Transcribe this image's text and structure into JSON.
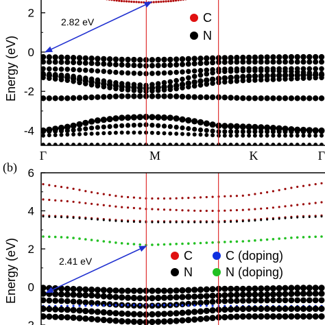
{
  "chart_data": [
    {
      "type": "scatter",
      "panel": "",
      "ylabel": "Energy (eV)",
      "ylim": [
        -4.75,
        3.0
      ],
      "yticks": [
        "-4",
        "-2",
        "0",
        "2"
      ],
      "ytick_values": [
        -4,
        -2,
        0,
        2
      ],
      "kpoints": [
        "Γ",
        "M",
        "K",
        "Γ"
      ],
      "kpoint_positions": [
        0,
        1,
        1.7,
        2.7
      ],
      "gap_annotation": {
        "text": "2.82 eV",
        "from": [
          0.02,
          0.0
        ],
        "to": [
          1.05,
          2.55
        ]
      },
      "legend": [
        {
          "label": "C",
          "color": "#e01010"
        },
        {
          "label": "N",
          "color": "#000000"
        }
      ],
      "bands": [
        {
          "color": "#b00a0a",
          "size": 1.6,
          "k": [
            0.45,
            0.6,
            0.75,
            0.9,
            1.0,
            1.1,
            1.25,
            1.4,
            1.55
          ],
          "e": [
            2.85,
            2.7,
            2.6,
            2.55,
            2.52,
            2.55,
            2.6,
            2.7,
            2.85
          ]
        },
        {
          "color": "#000000",
          "size": 4.2,
          "k": [
            0,
            0.25,
            0.5,
            0.75,
            1.0,
            1.25,
            1.5,
            1.7,
            1.95,
            2.2,
            2.45,
            2.7
          ],
          "e": [
            -0.25,
            -0.28,
            -0.33,
            -0.38,
            -0.4,
            -0.38,
            -0.33,
            -0.3,
            -0.28,
            -0.26,
            -0.25,
            -0.25
          ]
        },
        {
          "color": "#000000",
          "size": 4.0,
          "k": [
            0,
            0.25,
            0.5,
            0.75,
            1.0,
            1.25,
            1.5,
            1.7,
            1.95,
            2.2,
            2.45,
            2.7
          ],
          "e": [
            -0.5,
            -0.52,
            -0.58,
            -0.65,
            -0.7,
            -0.66,
            -0.58,
            -0.52,
            -0.5,
            -0.5,
            -0.5,
            -0.5
          ]
        },
        {
          "color": "#000000",
          "size": 3.8,
          "k": [
            0,
            0.25,
            0.5,
            0.75,
            1.0,
            1.25,
            1.5,
            1.7,
            1.95,
            2.2,
            2.45,
            2.7
          ],
          "e": [
            -0.85,
            -0.88,
            -0.95,
            -1.05,
            -1.1,
            -1.05,
            -0.95,
            -0.88,
            -0.85,
            -0.85,
            -0.85,
            -0.85
          ]
        },
        {
          "color": "#000000",
          "size": 3.8,
          "k": [
            0,
            0.25,
            0.5,
            0.75,
            1.0,
            1.25,
            1.5,
            1.7,
            1.95,
            2.2,
            2.45,
            2.7
          ],
          "e": [
            -1.1,
            -1.2,
            -1.4,
            -1.6,
            -1.7,
            -1.5,
            -1.2,
            -1.0,
            -0.95,
            -0.95,
            -1.0,
            -1.1
          ]
        },
        {
          "color": "#000000",
          "size": 4.2,
          "k": [
            0,
            0.25,
            0.5,
            0.75,
            1.0,
            1.25,
            1.5,
            1.7,
            1.95,
            2.2,
            2.45,
            2.7
          ],
          "e": [
            -1.15,
            -1.3,
            -1.55,
            -1.75,
            -1.85,
            -1.75,
            -1.5,
            -1.35,
            -1.25,
            -1.2,
            -1.18,
            -1.15
          ]
        },
        {
          "color": "#000000",
          "size": 3.8,
          "k": [
            0,
            0.25,
            0.5,
            0.75,
            1.0,
            1.25,
            1.5,
            1.7,
            1.95,
            2.2,
            2.45,
            2.7
          ],
          "e": [
            -1.3,
            -1.45,
            -1.7,
            -1.9,
            -2.0,
            -1.9,
            -1.7,
            -1.55,
            -1.45,
            -1.4,
            -1.35,
            -1.3
          ]
        },
        {
          "color": "#000000",
          "size": 4.2,
          "k": [
            0,
            0.25,
            0.5,
            0.75,
            1.0,
            1.25,
            1.5,
            1.7,
            1.95,
            2.2,
            2.45,
            2.7
          ],
          "e": [
            -2.35,
            -2.35,
            -2.3,
            -2.25,
            -2.25,
            -2.25,
            -2.3,
            -2.3,
            -2.35,
            -2.35,
            -2.35,
            -2.35
          ]
        },
        {
          "color": "#000000",
          "size": 4.6,
          "k": [
            0,
            0.25,
            0.5,
            0.75,
            1.0,
            1.25,
            1.5,
            1.7,
            1.95,
            2.2,
            2.45,
            2.7
          ],
          "e": [
            -4.0,
            -3.8,
            -3.5,
            -3.35,
            -3.3,
            -3.35,
            -3.55,
            -3.75,
            -3.8,
            -3.85,
            -3.95,
            -4.0
          ]
        },
        {
          "color": "#000000",
          "size": 3.6,
          "k": [
            0,
            0.25,
            0.5,
            0.75,
            1.0,
            1.25,
            1.5,
            1.7,
            1.95,
            2.2,
            2.45,
            2.7
          ],
          "e": [
            -4.05,
            -4.0,
            -3.85,
            -3.75,
            -3.7,
            -3.8,
            -3.95,
            -4.05,
            -4.05,
            -4.05,
            -4.05,
            -4.05
          ]
        },
        {
          "color": "#000000",
          "size": 3.0,
          "k": [
            0,
            0.25,
            0.5,
            0.75,
            1.0,
            1.25,
            1.5,
            1.7,
            1.95,
            2.2,
            2.45,
            2.7
          ],
          "e": [
            -4.25,
            -4.2,
            -4.15,
            -4.1,
            -4.1,
            -4.15,
            -4.2,
            -4.25,
            -4.25,
            -4.25,
            -4.25,
            -4.25
          ]
        },
        {
          "color": "#000000",
          "size": 3.0,
          "k": [
            0,
            0.25,
            0.5,
            0.75,
            1.0,
            1.25,
            1.5,
            1.7,
            1.95,
            2.2,
            2.45,
            2.7
          ],
          "e": [
            -4.72,
            -4.72,
            -4.72,
            -4.72,
            -4.72,
            -4.72,
            -4.72,
            -4.72,
            -4.72,
            -4.72,
            -4.72,
            -4.72
          ]
        }
      ]
    },
    {
      "type": "scatter",
      "panel": "(b)",
      "ylabel": "Energy (eV)",
      "ylim": [
        -2.0,
        6.0
      ],
      "yticks": [
        "-2",
        "0",
        "2",
        "4",
        "6"
      ],
      "ytick_values": [
        -2,
        0,
        2,
        4,
        6
      ],
      "kpoints": [
        "Γ",
        "M",
        "K",
        "Γ"
      ],
      "kpoint_positions": [
        0,
        1,
        1.7,
        2.7
      ],
      "gap_annotation": {
        "text": "2.41 eV",
        "from": [
          0.03,
          -0.3
        ],
        "to": [
          1.0,
          2.15
        ]
      },
      "legend": [
        {
          "label": "C",
          "color": "#e01010"
        },
        {
          "label": "N",
          "color": "#000000"
        },
        {
          "label": "C (doping)",
          "color": "#1030e0"
        },
        {
          "label": "N (doping)",
          "color": "#22c022"
        }
      ],
      "bands": [
        {
          "color": "#9a0a0a",
          "size": 1.6,
          "k": [
            0,
            0.25,
            0.5,
            0.75,
            1.0,
            1.25,
            1.5,
            1.7,
            1.95,
            2.2,
            2.45,
            2.7
          ],
          "e": [
            5.4,
            5.2,
            4.95,
            4.75,
            4.65,
            4.65,
            4.7,
            4.75,
            4.8,
            5.0,
            5.25,
            5.45
          ]
        },
        {
          "color": "#9a0a0a",
          "size": 1.6,
          "k": [
            0,
            0.25,
            0.5,
            0.75,
            1.0,
            1.25,
            1.5,
            1.7,
            1.95,
            2.2,
            2.45,
            2.7
          ],
          "e": [
            4.6,
            4.5,
            4.35,
            4.2,
            4.1,
            4.05,
            4.0,
            4.0,
            4.05,
            4.15,
            4.3,
            4.45
          ]
        },
        {
          "color": "#9a0a0a",
          "size": 1.6,
          "k": [
            0,
            0.25,
            0.5,
            0.75,
            1.0,
            1.25,
            1.5,
            1.7,
            1.95,
            2.2,
            2.45,
            2.7
          ],
          "e": [
            3.75,
            3.7,
            3.6,
            3.5,
            3.45,
            3.45,
            3.45,
            3.45,
            3.5,
            3.6,
            3.7,
            3.75
          ]
        },
        {
          "color": "#000000",
          "size": 1.5,
          "k": [
            0,
            0.25,
            0.5,
            0.75,
            1.0,
            1.25,
            1.5,
            1.7,
            1.95,
            2.2,
            2.45,
            2.7
          ],
          "e": [
            3.7,
            3.65,
            3.55,
            3.45,
            3.4,
            3.4,
            3.4,
            3.4,
            3.45,
            3.55,
            3.65,
            3.7
          ]
        },
        {
          "color": "#22c022",
          "size": 1.8,
          "k": [
            0,
            0.25,
            0.5,
            0.75,
            1.0,
            1.25,
            1.5,
            1.7,
            1.95,
            2.2,
            2.45,
            2.7
          ],
          "e": [
            2.65,
            2.6,
            2.45,
            2.3,
            2.2,
            2.25,
            2.3,
            2.35,
            2.4,
            2.5,
            2.6,
            2.65
          ]
        },
        {
          "color": "#000000",
          "size": 4.6,
          "k": [
            0,
            0.25,
            0.5,
            0.75,
            1.0,
            1.25,
            1.5,
            1.7,
            1.95,
            2.2,
            2.45,
            2.7
          ],
          "e": [
            -0.05,
            -0.1,
            -0.15,
            -0.2,
            -0.2,
            -0.2,
            -0.15,
            -0.1,
            -0.1,
            -0.08,
            -0.05,
            -0.05
          ]
        },
        {
          "color": "#000000",
          "size": 4.6,
          "k": [
            0,
            0.25,
            0.5,
            0.75,
            1.0,
            1.25,
            1.5,
            1.7,
            1.95,
            2.2,
            2.45,
            2.7
          ],
          "e": [
            -0.35,
            -0.4,
            -0.45,
            -0.55,
            -0.6,
            -0.55,
            -0.5,
            -0.45,
            -0.4,
            -0.4,
            -0.35,
            -0.35
          ]
        },
        {
          "color": "#000000",
          "size": 4.4,
          "k": [
            0,
            0.25,
            0.5,
            0.75,
            1.0,
            1.25,
            1.5,
            1.7,
            1.95,
            2.2,
            2.45,
            2.7
          ],
          "e": [
            -0.7,
            -0.75,
            -0.85,
            -0.95,
            -1.0,
            -0.95,
            -0.85,
            -0.75,
            -0.72,
            -0.7,
            -0.7,
            -0.7
          ]
        },
        {
          "color": "#1030e0",
          "size": 1.6,
          "k": [
            0,
            0.25,
            0.5,
            0.75,
            1.0,
            1.25,
            1.5,
            1.7,
            1.95,
            2.2,
            2.45,
            2.7
          ],
          "e": [
            -1.0,
            -1.0,
            -0.98,
            -0.95,
            -0.95,
            -0.95,
            -0.98,
            -1.0,
            -1.0,
            -1.0,
            -1.0,
            -1.0
          ]
        },
        {
          "color": "#000000",
          "size": 4.6,
          "k": [
            0,
            0.25,
            0.5,
            0.75,
            1.0,
            1.25,
            1.5,
            1.7,
            1.95,
            2.2,
            2.45,
            2.7
          ],
          "e": [
            -1.15,
            -1.2,
            -1.3,
            -1.4,
            -1.45,
            -1.4,
            -1.3,
            -1.2,
            -1.15,
            -1.15,
            -1.15,
            -1.15
          ]
        },
        {
          "color": "#000000",
          "size": 4.6,
          "k": [
            0,
            0.25,
            0.5,
            0.75,
            1.0,
            1.25,
            1.5,
            1.7,
            1.95,
            2.2,
            2.45,
            2.7
          ],
          "e": [
            -1.55,
            -1.6,
            -1.7,
            -1.8,
            -1.85,
            -1.8,
            -1.7,
            -1.6,
            -1.55,
            -1.55,
            -1.55,
            -1.55
          ]
        }
      ]
    }
  ]
}
